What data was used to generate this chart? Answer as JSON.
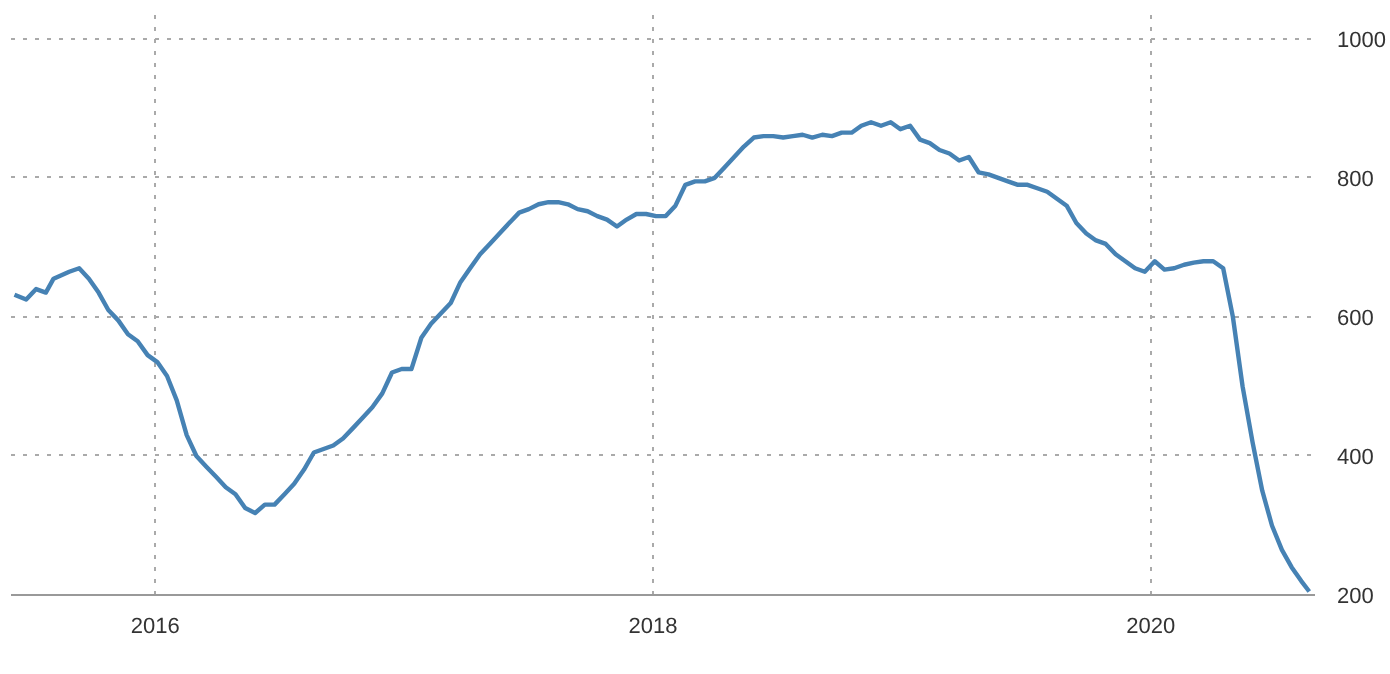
{
  "chart_data": {
    "type": "line",
    "x": [
      2015.434,
      2015.481,
      2015.521,
      2015.56,
      2015.591,
      2015.654,
      2015.694,
      2015.733,
      2015.772,
      2015.811,
      2015.851,
      2015.89,
      2015.929,
      2015.969,
      2016.008,
      2016.047,
      2016.086,
      2016.126,
      2016.165,
      2016.204,
      2016.244,
      2016.283,
      2016.322,
      2016.361,
      2016.401,
      2016.44,
      2016.479,
      2016.519,
      2016.558,
      2016.597,
      2016.637,
      2016.676,
      2016.715,
      2016.754,
      2016.794,
      2016.833,
      2016.872,
      2016.912,
      2016.951,
      2016.99,
      2017.029,
      2017.069,
      2017.108,
      2017.147,
      2017.187,
      2017.226,
      2017.265,
      2017.305,
      2017.344,
      2017.383,
      2017.422,
      2017.462,
      2017.501,
      2017.54,
      2017.58,
      2017.619,
      2017.658,
      2017.697,
      2017.737,
      2017.776,
      2017.815,
      2017.855,
      2017.894,
      2017.933,
      2017.972,
      2018.012,
      2018.051,
      2018.09,
      2018.13,
      2018.169,
      2018.208,
      2018.248,
      2018.287,
      2018.326,
      2018.365,
      2018.405,
      2018.444,
      2018.483,
      2018.523,
      2018.562,
      2018.601,
      2018.64,
      2018.68,
      2018.719,
      2018.758,
      2018.798,
      2018.837,
      2018.876,
      2018.916,
      2018.955,
      2018.994,
      2019.033,
      2019.073,
      2019.112,
      2019.151,
      2019.191,
      2019.23,
      2019.269,
      2019.308,
      2019.348,
      2019.387,
      2019.426,
      2019.466,
      2019.505,
      2019.544,
      2019.584,
      2019.623,
      2019.662,
      2019.701,
      2019.741,
      2019.78,
      2019.819,
      2019.859,
      2019.898,
      2019.937,
      2019.976,
      2020.016,
      2020.055,
      2020.094,
      2020.134,
      2020.173,
      2020.212,
      2020.251,
      2020.291,
      2020.33,
      2020.369,
      2020.409,
      2020.448,
      2020.487,
      2020.527,
      2020.566,
      2020.605,
      2020.637
    ],
    "series": [
      {
        "color": "#4682b4",
        "values": [
          632,
          625,
          640,
          635,
          655,
          665,
          670,
          655,
          635,
          610,
          595,
          575,
          565,
          545,
          535,
          515,
          480,
          430,
          400,
          385,
          370,
          355,
          345,
          325,
          318,
          330,
          330,
          345,
          360,
          380,
          405,
          410,
          415,
          425,
          440,
          455,
          470,
          490,
          520,
          525,
          525,
          570,
          590,
          605,
          620,
          650,
          670,
          690,
          705,
          720,
          735,
          750,
          755,
          762,
          765,
          765,
          762,
          755,
          752,
          745,
          740,
          730,
          740,
          748,
          748,
          745,
          745,
          760,
          790,
          795,
          795,
          800,
          815,
          830,
          845,
          858,
          860,
          860,
          858,
          860,
          862,
          858,
          862,
          860,
          865,
          865,
          875,
          880,
          875,
          880,
          870,
          875,
          855,
          850,
          840,
          835,
          825,
          830,
          808,
          805,
          800,
          795,
          790,
          790,
          785,
          780,
          770,
          760,
          735,
          720,
          710,
          705,
          690,
          680,
          670,
          665,
          680,
          668,
          670,
          675,
          678,
          680,
          680,
          670,
          600,
          500,
          420,
          350,
          300,
          265,
          240,
          220,
          205
        ]
      }
    ],
    "xlim": [
      2015.42,
      2020.66
    ],
    "ylim": [
      200,
      1040
    ],
    "xticks": [
      2016,
      2018,
      2020
    ],
    "yticks": [
      200,
      400,
      600,
      800,
      1000
    ],
    "grid": true,
    "line_style": "solid"
  }
}
